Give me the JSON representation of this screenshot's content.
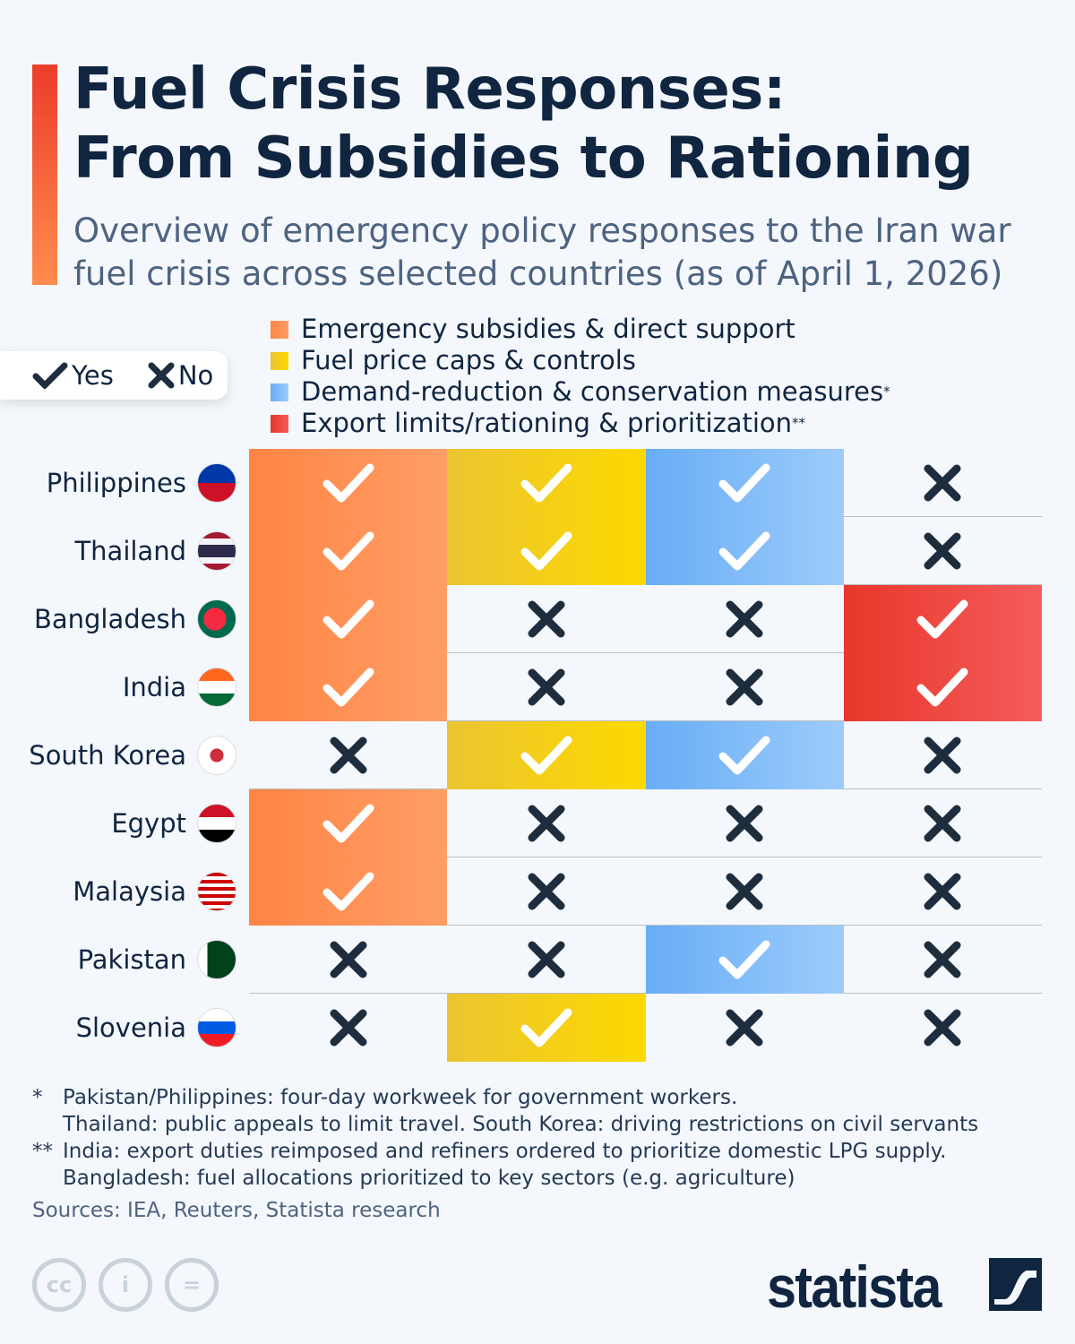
{
  "title": [
    "Fuel Crisis Responses:",
    "From Subsidies to Rationing"
  ],
  "subtitle": "Overview of emergency policy responses to the Iran war fuel crisis across selected countries (as of April 1, 2026)",
  "key": {
    "yes": "Yes",
    "no": "No"
  },
  "colors": {
    "orange": "#ff8a4c",
    "yellow": "#f5cf14",
    "blue": "#78b6f7",
    "red": "#ec3d2c"
  },
  "chart_data": {
    "type": "table",
    "columns": [
      {
        "label": "Emergency subsidies & direct support",
        "mark": "",
        "grad": [
          "#ff8545",
          "#ff9e66"
        ]
      },
      {
        "label": "Fuel price caps & controls",
        "mark": "",
        "grad": [
          "#ebc531",
          "#fdd900"
        ]
      },
      {
        "label": "Demand-reduction & conservation measures",
        "mark": "*",
        "grad": [
          "#68adf5",
          "#9dccfb"
        ]
      },
      {
        "label": "Export limits/rationing & prioritization",
        "mark": "**",
        "grad": [
          "#e8372a",
          "#f45c5c"
        ]
      }
    ],
    "rows": [
      {
        "country": "Philippines",
        "flag": "linear-gradient(#0038a8 50%,#ce1126 50%)",
        "values": [
          true,
          true,
          true,
          false
        ]
      },
      {
        "country": "Thailand",
        "flag": "linear-gradient(#a51931 17%,#f4f5f8 17% 33%,#2d2a4a 33% 67%,#f4f5f8 67% 83%,#a51931 83%)",
        "values": [
          true,
          true,
          true,
          false
        ]
      },
      {
        "country": "Bangladesh",
        "flag": "radial-gradient(circle at 45% 50%,#f42a41 40%,#006a4e 41%)",
        "values": [
          true,
          false,
          false,
          true
        ]
      },
      {
        "country": "India",
        "flag": "linear-gradient(#ff671f 33%,#fff 33% 67%,#046a38 67%)",
        "values": [
          true,
          false,
          false,
          true
        ]
      },
      {
        "country": "South Korea",
        "flag": "radial-gradient(circle,#cd2e3a 25%,#fff 26%)",
        "values": [
          false,
          true,
          true,
          false
        ]
      },
      {
        "country": "Egypt",
        "flag": "linear-gradient(#ce1126 33%,#fff 33% 67%,#000 67%)",
        "values": [
          true,
          false,
          false,
          false
        ]
      },
      {
        "country": "Malaysia",
        "flag": "repeating-linear-gradient(#cc0001 0 4px,#fff 4px 8px)",
        "values": [
          true,
          false,
          false,
          false
        ]
      },
      {
        "country": "Pakistan",
        "flag": "linear-gradient(90deg,#fff 25%,#01411c 25%)",
        "values": [
          false,
          false,
          true,
          false
        ]
      },
      {
        "country": "Slovenia",
        "flag": "linear-gradient(#fff 33%,#005ce5 33% 67%,#ed1c24 67%)",
        "values": [
          false,
          true,
          false,
          false
        ]
      }
    ]
  },
  "footnotes": [
    {
      "mark": "*",
      "lines": [
        "Pakistan/Philippines: four-day workweek for government workers.",
        "Thailand: public appeals to limit travel. South Korea: driving restrictions on civil servants"
      ]
    },
    {
      "mark": "**",
      "lines": [
        "India: export duties reimposed and refiners ordered to prioritize domestic LPG supply.",
        "Bangladesh: fuel allocations prioritized to key sectors (e.g. agriculture)"
      ]
    }
  ],
  "sources": "Sources: IEA, Reuters, Statista research",
  "brand": "statista",
  "license_icons": [
    "cc",
    "i",
    "="
  ]
}
